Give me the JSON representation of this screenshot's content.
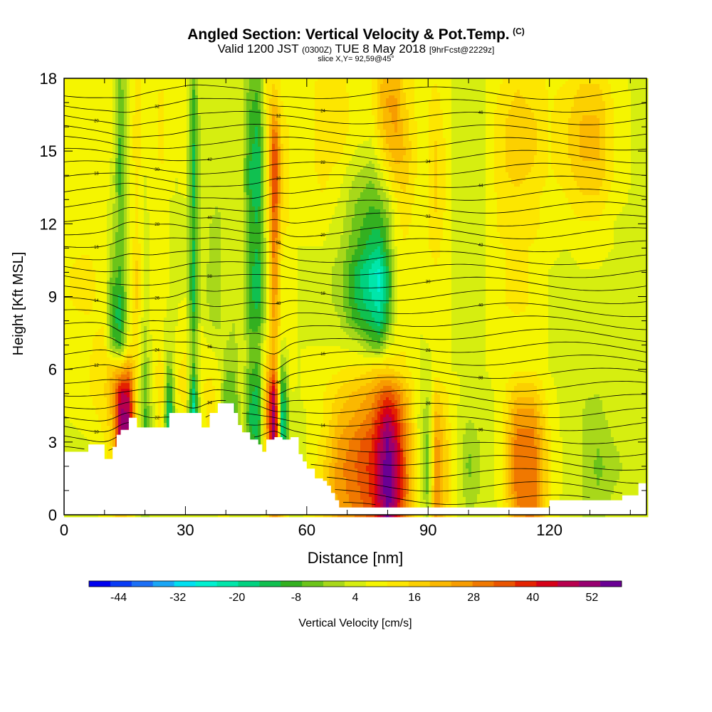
{
  "header": {
    "title": "Angled Section: Vertical Velocity & Pot.Temp.",
    "title_badge": "(C)",
    "valid_prefix": "Valid 1200 JST",
    "valid_zulu": "(0300Z)",
    "valid_date": "TUE 8 May 2018",
    "forecast_tag": "[9hrFcst@2229z]",
    "slice": "slice X,Y= 92,59@45°"
  },
  "chart_data": {
    "type": "heatmap",
    "title": "Angled Section: Vertical Velocity & Pot.Temp.",
    "xlabel": "Distance [nm]",
    "ylabel": "Height [Kft MSL]",
    "xlim": [
      0,
      144
    ],
    "ylim": [
      0,
      18
    ],
    "x_ticks": [
      0,
      30,
      60,
      90,
      120
    ],
    "y_ticks": [
      0,
      3,
      6,
      9,
      12,
      15,
      18
    ],
    "colorbar": {
      "label": "Vertical Velocity [cm/s]",
      "tick_labels": [
        "-44",
        "-32",
        "-20",
        "-8",
        "4",
        "16",
        "28",
        "40",
        "52"
      ],
      "min": -50,
      "max": 58,
      "colors": [
        "#0000ee",
        "#0a3cf5",
        "#1c6ff5",
        "#1aa6f5",
        "#00e0f0",
        "#00f0d0",
        "#00e6aa",
        "#00d280",
        "#10c050",
        "#33b020",
        "#6cc41a",
        "#a8d81a",
        "#d6ee10",
        "#f5f500",
        "#fde600",
        "#fcd000",
        "#fbb800",
        "#f79c00",
        "#f07800",
        "#ea5400",
        "#e42200",
        "#d60018",
        "#b8004e",
        "#980070",
        "#6a0094"
      ]
    },
    "x": [
      0,
      6,
      10,
      12,
      14,
      16,
      18,
      20,
      22,
      24,
      26,
      28,
      30,
      32,
      34,
      36,
      38,
      40,
      42,
      44,
      46,
      48,
      50,
      52,
      54,
      56,
      58,
      60,
      64,
      68,
      72,
      76,
      78,
      80,
      82,
      84,
      88,
      90,
      92,
      96,
      100,
      104,
      108,
      112,
      116,
      120,
      124,
      128,
      132,
      136,
      140,
      144
    ],
    "z": [
      0,
      1,
      2,
      3,
      4,
      5,
      6,
      7,
      8,
      9,
      10,
      11,
      12,
      13,
      14,
      15,
      16,
      17,
      18
    ],
    "w": [
      [
        4,
        4,
        8,
        10,
        20,
        14,
        4,
        0,
        4,
        6,
        4,
        2,
        6,
        6,
        2,
        4,
        6,
        8,
        4,
        4,
        2,
        4,
        10,
        30,
        18,
        6,
        4,
        8,
        14,
        24,
        28,
        34,
        44,
        56,
        44,
        30,
        8,
        0,
        26,
        8,
        2,
        4,
        6,
        26,
        30,
        10,
        4,
        2,
        0,
        4,
        2,
        4
      ],
      [
        4,
        4,
        8,
        14,
        30,
        34,
        6,
        -2,
        4,
        8,
        4,
        2,
        6,
        6,
        2,
        4,
        6,
        8,
        4,
        4,
        2,
        4,
        12,
        40,
        20,
        4,
        4,
        8,
        14,
        26,
        30,
        38,
        48,
        58,
        48,
        34,
        6,
        -4,
        28,
        10,
        -2,
        4,
        8,
        30,
        32,
        12,
        4,
        2,
        -2,
        2,
        4,
        4
      ],
      [
        4,
        6,
        8,
        16,
        44,
        44,
        6,
        -6,
        4,
        10,
        -10,
        4,
        6,
        -10,
        4,
        8,
        6,
        8,
        4,
        4,
        -4,
        -8,
        16,
        50,
        -14,
        2,
        4,
        6,
        14,
        26,
        32,
        38,
        48,
        58,
        48,
        34,
        4,
        -6,
        28,
        10,
        -4,
        4,
        8,
        30,
        32,
        12,
        4,
        2,
        -4,
        0,
        4,
        4
      ],
      [
        4,
        6,
        10,
        16,
        50,
        48,
        8,
        -6,
        4,
        12,
        -14,
        4,
        8,
        -16,
        6,
        10,
        8,
        -6,
        -4,
        2,
        -8,
        -12,
        20,
        54,
        -20,
        2,
        4,
        6,
        12,
        24,
        30,
        36,
        46,
        56,
        46,
        32,
        4,
        -4,
        26,
        10,
        -2,
        4,
        8,
        30,
        30,
        12,
        4,
        2,
        -2,
        2,
        4,
        4
      ],
      [
        6,
        8,
        12,
        20,
        52,
        50,
        10,
        -8,
        4,
        14,
        -20,
        8,
        10,
        -24,
        8,
        12,
        10,
        -8,
        -8,
        4,
        -12,
        -16,
        24,
        56,
        -22,
        4,
        4,
        6,
        10,
        20,
        24,
        30,
        40,
        48,
        40,
        28,
        4,
        -2,
        22,
        8,
        2,
        4,
        8,
        26,
        26,
        10,
        4,
        2,
        0,
        4,
        4,
        4
      ],
      [
        8,
        10,
        14,
        24,
        46,
        44,
        10,
        -6,
        6,
        16,
        -14,
        10,
        12,
        -18,
        10,
        12,
        10,
        -6,
        -6,
        6,
        -10,
        -14,
        22,
        50,
        -16,
        6,
        6,
        8,
        10,
        16,
        20,
        24,
        30,
        34,
        30,
        22,
        6,
        2,
        16,
        8,
        4,
        4,
        8,
        18,
        18,
        8,
        4,
        2,
        2,
        4,
        4,
        4
      ],
      [
        10,
        10,
        14,
        18,
        20,
        26,
        12,
        -4,
        8,
        14,
        -6,
        10,
        12,
        -8,
        10,
        10,
        8,
        -2,
        -2,
        6,
        -6,
        -8,
        16,
        30,
        -6,
        8,
        6,
        8,
        8,
        10,
        12,
        14,
        16,
        16,
        14,
        12,
        6,
        4,
        8,
        6,
        6,
        6,
        8,
        10,
        10,
        6,
        4,
        4,
        4,
        4,
        4,
        4
      ],
      [
        10,
        10,
        12,
        -4,
        -8,
        10,
        12,
        0,
        8,
        10,
        2,
        8,
        10,
        -4,
        8,
        6,
        4,
        2,
        0,
        6,
        -4,
        -4,
        10,
        22,
        4,
        8,
        6,
        6,
        6,
        6,
        4,
        -4,
        -6,
        4,
        8,
        10,
        6,
        6,
        8,
        6,
        6,
        6,
        8,
        8,
        8,
        6,
        4,
        4,
        4,
        4,
        4,
        4
      ],
      [
        10,
        10,
        10,
        -10,
        -14,
        6,
        14,
        2,
        8,
        8,
        4,
        6,
        8,
        -10,
        6,
        2,
        0,
        4,
        2,
        4,
        -8,
        -10,
        4,
        26,
        8,
        8,
        6,
        6,
        4,
        2,
        -8,
        -14,
        -18,
        -8,
        6,
        10,
        6,
        8,
        10,
        6,
        4,
        6,
        10,
        10,
        10,
        6,
        4,
        6,
        6,
        4,
        4,
        4
      ],
      [
        10,
        12,
        8,
        -8,
        -12,
        4,
        16,
        4,
        8,
        8,
        6,
        6,
        6,
        -14,
        6,
        0,
        -2,
        6,
        4,
        2,
        -10,
        -14,
        2,
        28,
        8,
        8,
        6,
        6,
        4,
        0,
        -12,
        -20,
        -24,
        -12,
        4,
        10,
        6,
        8,
        10,
        6,
        4,
        6,
        10,
        12,
        10,
        6,
        4,
        6,
        6,
        4,
        4,
        4
      ],
      [
        10,
        12,
        8,
        -4,
        -8,
        6,
        16,
        4,
        8,
        8,
        6,
        6,
        6,
        -14,
        6,
        0,
        -2,
        6,
        4,
        2,
        -10,
        -14,
        2,
        30,
        8,
        8,
        6,
        6,
        4,
        0,
        -12,
        -22,
        -26,
        -12,
        4,
        10,
        6,
        8,
        10,
        6,
        4,
        6,
        10,
        12,
        10,
        6,
        4,
        6,
        6,
        4,
        4,
        4
      ],
      [
        10,
        10,
        8,
        0,
        -6,
        6,
        14,
        4,
        8,
        8,
        6,
        6,
        6,
        -12,
        6,
        2,
        0,
        6,
        4,
        2,
        -8,
        -12,
        4,
        32,
        10,
        8,
        6,
        6,
        6,
        2,
        -6,
        -14,
        -16,
        -6,
        6,
        10,
        8,
        10,
        12,
        6,
        4,
        6,
        10,
        12,
        10,
        8,
        6,
        8,
        8,
        6,
        4,
        4
      ],
      [
        10,
        10,
        8,
        2,
        -6,
        6,
        12,
        4,
        8,
        8,
        6,
        6,
        6,
        -10,
        6,
        2,
        0,
        6,
        4,
        2,
        -8,
        -12,
        6,
        34,
        12,
        10,
        8,
        8,
        8,
        4,
        -4,
        -10,
        -10,
        -4,
        8,
        12,
        8,
        10,
        14,
        6,
        4,
        6,
        12,
        12,
        12,
        8,
        8,
        10,
        10,
        6,
        4,
        4
      ],
      [
        10,
        10,
        8,
        4,
        -8,
        6,
        12,
        6,
        8,
        10,
        6,
        6,
        6,
        -12,
        6,
        4,
        2,
        6,
        4,
        2,
        -10,
        -14,
        6,
        38,
        14,
        10,
        8,
        8,
        10,
        6,
        -2,
        -6,
        -4,
        2,
        10,
        14,
        8,
        10,
        16,
        6,
        4,
        6,
        12,
        14,
        12,
        8,
        10,
        14,
        14,
        8,
        6,
        4
      ],
      [
        10,
        10,
        8,
        4,
        -10,
        6,
        12,
        6,
        8,
        10,
        8,
        6,
        8,
        -14,
        6,
        4,
        2,
        4,
        4,
        2,
        -12,
        -16,
        6,
        40,
        14,
        10,
        8,
        8,
        12,
        8,
        2,
        -2,
        4,
        10,
        16,
        18,
        8,
        10,
        16,
        6,
        4,
        6,
        14,
        16,
        14,
        10,
        12,
        18,
        18,
        10,
        6,
        4
      ],
      [
        10,
        10,
        10,
        6,
        -10,
        6,
        14,
        8,
        8,
        12,
        8,
        8,
        8,
        -12,
        6,
        4,
        2,
        4,
        4,
        2,
        -10,
        -14,
        8,
        38,
        14,
        10,
        8,
        8,
        14,
        12,
        6,
        4,
        10,
        18,
        22,
        20,
        8,
        10,
        16,
        6,
        4,
        6,
        14,
        18,
        16,
        10,
        14,
        20,
        20,
        10,
        6,
        4
      ],
      [
        10,
        10,
        10,
        8,
        -8,
        6,
        14,
        8,
        8,
        12,
        8,
        8,
        8,
        -10,
        6,
        4,
        2,
        4,
        4,
        2,
        -8,
        -12,
        8,
        30,
        12,
        10,
        8,
        8,
        14,
        14,
        8,
        8,
        16,
        22,
        24,
        18,
        8,
        10,
        14,
        6,
        4,
        6,
        14,
        18,
        16,
        10,
        14,
        20,
        20,
        10,
        6,
        4
      ],
      [
        10,
        10,
        10,
        8,
        -6,
        6,
        12,
        8,
        8,
        12,
        8,
        8,
        8,
        -8,
        6,
        6,
        4,
        6,
        6,
        4,
        -6,
        -8,
        10,
        20,
        10,
        8,
        8,
        8,
        14,
        14,
        8,
        10,
        18,
        24,
        24,
        16,
        8,
        10,
        12,
        6,
        4,
        6,
        12,
        16,
        14,
        10,
        12,
        18,
        18,
        10,
        6,
        4
      ],
      [
        10,
        10,
        10,
        8,
        -4,
        6,
        12,
        8,
        8,
        10,
        8,
        8,
        8,
        -6,
        6,
        6,
        4,
        6,
        6,
        4,
        -4,
        -6,
        10,
        14,
        8,
        8,
        8,
        8,
        12,
        12,
        8,
        10,
        18,
        22,
        22,
        14,
        8,
        10,
        10,
        6,
        4,
        6,
        10,
        14,
        12,
        10,
        10,
        14,
        14,
        8,
        6,
        4
      ]
    ],
    "terrain": {
      "x": [
        0,
        3,
        6,
        8,
        10,
        11,
        12,
        13,
        14,
        16,
        18,
        22,
        26,
        30,
        34,
        36,
        38,
        40,
        42,
        43,
        44,
        46,
        48,
        49,
        50,
        52,
        54,
        56,
        58,
        59,
        60,
        62,
        64,
        65,
        66,
        67,
        68,
        69,
        70,
        76,
        80,
        88,
        96,
        104,
        112,
        120,
        128,
        134,
        138,
        142,
        144
      ],
      "height": [
        2.6,
        2.6,
        2.9,
        2.9,
        2.3,
        2.3,
        2.8,
        3.3,
        3.5,
        4.0,
        3.6,
        3.6,
        4.2,
        4.2,
        3.6,
        4.2,
        4.6,
        4.6,
        4.2,
        3.7,
        3.4,
        3.1,
        2.9,
        2.6,
        3.1,
        3.2,
        3.1,
        3.2,
        2.5,
        2.2,
        1.9,
        1.5,
        1.4,
        1.2,
        0.9,
        0.6,
        0.3,
        0.3,
        0.3,
        0.3,
        0.3,
        0.3,
        0.3,
        0.3,
        0.3,
        0.6,
        0.6,
        0.6,
        0.8,
        1.3,
        1.3
      ]
    },
    "isentropes": {
      "label": "Pot.Temp.",
      "count": 34,
      "contour_labels": [
        "10",
        "12",
        "14",
        "16",
        "18",
        "20",
        "22",
        "24",
        "26",
        "28",
        "30",
        "32",
        "34",
        "36",
        "38",
        "40",
        "42",
        "44",
        "46",
        "48",
        "50"
      ]
    }
  }
}
